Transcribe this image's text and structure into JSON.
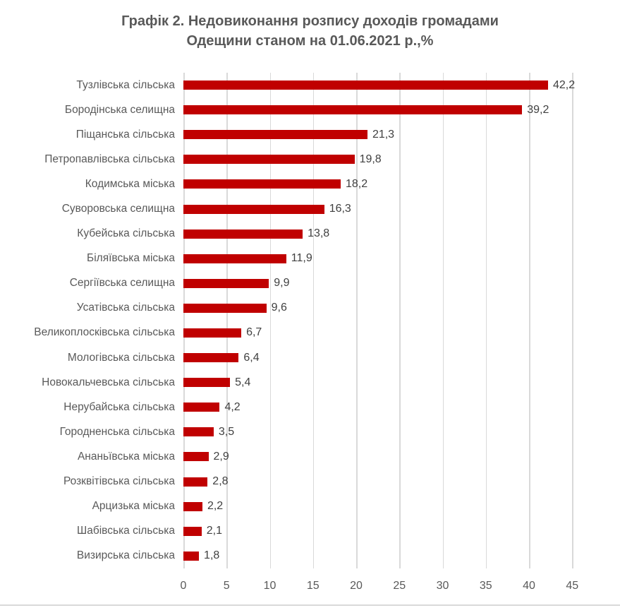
{
  "title": {
    "line1": "Графік 2. Недовиконання розпису доходів громадами",
    "line2": "Одещини станом на 01.06.2021 р.,%"
  },
  "chart_data": {
    "type": "bar",
    "orientation": "horizontal",
    "title": "Графік 2. Недовиконання розпису доходів громадами Одещини станом на 01.06.2021 р.,%",
    "categories": [
      "Тузлівська сільська",
      "Бородінська селищна",
      "Піщанська сільська",
      "Петропавлівська сільська",
      "Кодимська міська",
      "Суворовська селищна",
      "Кубейська сільська",
      "Біляївська міська",
      "Сергіївська селищна",
      "Усатівська сільська",
      "Великоплосківська сільська",
      "Мологівська сільська",
      "Новокальчевська сільська",
      "Нерубайська сільська",
      "Городненська сільська",
      "Ананьївська міська",
      "Розквітівська сільська",
      "Арцизька міська",
      "Шабівська сільська",
      "Визирська сільська"
    ],
    "values": [
      42.2,
      39.2,
      21.3,
      19.8,
      18.2,
      16.3,
      13.8,
      11.9,
      9.9,
      9.6,
      6.7,
      6.4,
      5.4,
      4.2,
      3.5,
      2.9,
      2.8,
      2.2,
      2.1,
      1.8
    ],
    "value_labels": [
      "42,2",
      "39,2",
      "21,3",
      "19,8",
      "18,2",
      "16,3",
      "13,8",
      "11,9",
      "9,9",
      "9,6",
      "6,7",
      "6,4",
      "5,4",
      "4,2",
      "3,5",
      "2,9",
      "2,8",
      "2,2",
      "2,1",
      "1,8"
    ],
    "x_ticks": [
      0,
      5,
      10,
      15,
      20,
      25,
      30,
      35,
      40,
      45
    ],
    "xlim": [
      0,
      50.2
    ],
    "xlabel": "",
    "ylabel": "",
    "legend": "none",
    "grid": "vertical",
    "bar_color": "#c00000",
    "gridline_color": "#d9d9d9",
    "category_label_color": "#595959",
    "value_label_color": "#404040",
    "title_color": "#595959"
  }
}
